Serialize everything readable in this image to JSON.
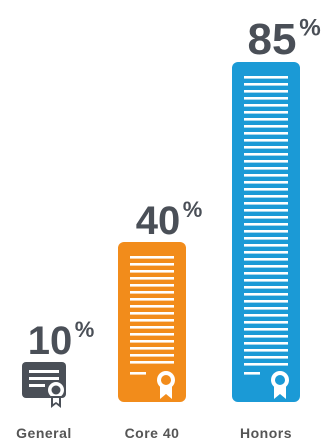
{
  "chart_data": {
    "type": "bar",
    "title": "",
    "xlabel": "",
    "ylabel": "",
    "ylim": [
      0,
      100
    ],
    "categories": [
      "General",
      "Core 40",
      "Honors"
    ],
    "values": [
      10,
      40,
      85
    ],
    "value_labels": [
      "10",
      "40",
      "85"
    ],
    "value_suffix": "%",
    "colors": [
      "#4a4f57",
      "#f28c1b",
      "#1b9ad6"
    ],
    "grid": false,
    "legend": "none"
  }
}
